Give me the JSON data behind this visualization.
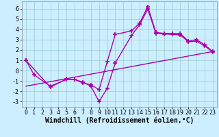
{
  "line1_x": [
    0,
    1,
    3,
    5,
    6,
    7,
    8,
    9,
    10,
    11,
    13,
    14,
    15,
    16,
    17,
    18,
    19,
    20,
    21,
    22,
    23
  ],
  "line1_y": [
    1.0,
    -0.4,
    -1.5,
    -0.85,
    -0.85,
    -1.2,
    -1.35,
    -1.85,
    0.85,
    3.5,
    3.85,
    4.6,
    6.2,
    3.7,
    3.6,
    3.6,
    3.6,
    2.85,
    3.0,
    2.5,
    1.85
  ],
  "line2_x": [
    0,
    3,
    5,
    6,
    7,
    8,
    9,
    10,
    11,
    13,
    14,
    15,
    16,
    17,
    18,
    19,
    20,
    21,
    22,
    23
  ],
  "line2_y": [
    1.0,
    -1.6,
    -0.8,
    -0.85,
    -1.1,
    -1.5,
    -3.0,
    -1.7,
    0.75,
    3.4,
    4.45,
    5.95,
    3.6,
    3.55,
    3.5,
    3.45,
    2.8,
    2.85,
    2.4,
    1.8
  ],
  "line3_x": [
    0,
    23
  ],
  "line3_y": [
    -1.5,
    1.85
  ],
  "line_color": "#aa00aa",
  "marker": "+",
  "markersize": 5,
  "markeredgewidth": 1.2,
  "linewidth": 1.0,
  "xlabel": "Windchill (Refroidissement éolien,°C)",
  "xlabel_fontsize": 7,
  "xlim": [
    -0.5,
    23.5
  ],
  "ylim": [
    -3.5,
    6.7
  ],
  "xticks": [
    0,
    1,
    2,
    3,
    4,
    5,
    6,
    7,
    8,
    9,
    10,
    11,
    12,
    13,
    14,
    15,
    16,
    17,
    18,
    19,
    20,
    21,
    22,
    23
  ],
  "yticks": [
    -3,
    -2,
    -1,
    0,
    1,
    2,
    3,
    4,
    5,
    6
  ],
  "bg_color": "#cceeff",
  "grid_color": "#99cccc",
  "tick_fontsize": 6
}
